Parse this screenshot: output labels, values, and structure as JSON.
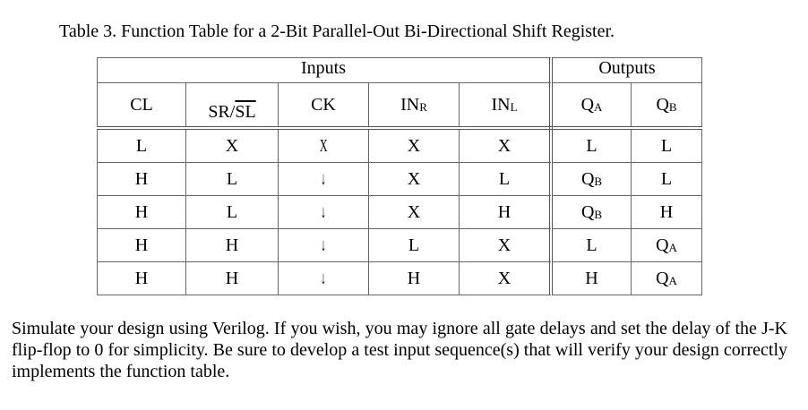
{
  "caption": "Table 3.  Function Table for a 2-Bit Parallel-Out Bi-Directional Shift Register.",
  "groups": {
    "inputs": "Inputs",
    "outputs": "Outputs"
  },
  "headers": {
    "cl": "CL",
    "sr": "SR/",
    "sl": "SL",
    "ck": "CK",
    "inr": "IN",
    "inr_sub": "R",
    "inl": "IN",
    "inl_sub": "L",
    "qa": "Q",
    "qa_sub": "A",
    "qb": "Q",
    "qb_sub": "B"
  },
  "rows": [
    {
      "cl": "L",
      "srsl": "X",
      "ck": "X",
      "inr": "X",
      "inl": "X",
      "qa": "L",
      "qa_sub": "",
      "qb": "L",
      "qb_sub": ""
    },
    {
      "cl": "H",
      "srsl": "L",
      "ck": "↓",
      "inr": "X",
      "inl": "L",
      "qa": "Q",
      "qa_sub": "B",
      "qb": "L",
      "qb_sub": ""
    },
    {
      "cl": "H",
      "srsl": "L",
      "ck": "↓",
      "inr": "X",
      "inl": "H",
      "qa": "Q",
      "qa_sub": "B",
      "qb": "H",
      "qb_sub": ""
    },
    {
      "cl": "H",
      "srsl": "H",
      "ck": "↓",
      "inr": "L",
      "inl": "X",
      "qa": "L",
      "qa_sub": "",
      "qb": "Q",
      "qb_sub": "A"
    },
    {
      "cl": "H",
      "srsl": "H",
      "ck": "↓",
      "inr": "H",
      "inl": "X",
      "qa": "H",
      "qa_sub": "",
      "qb": "Q",
      "qb_sub": "A"
    }
  ],
  "paragraph": "Simulate your design using Verilog.  If you wish, you may ignore all gate delays and set the delay of the J-K flip-flop to 0 for simplicity.  Be sure to develop a test input sequence(s) that will verify your design correctly implements the function table."
}
